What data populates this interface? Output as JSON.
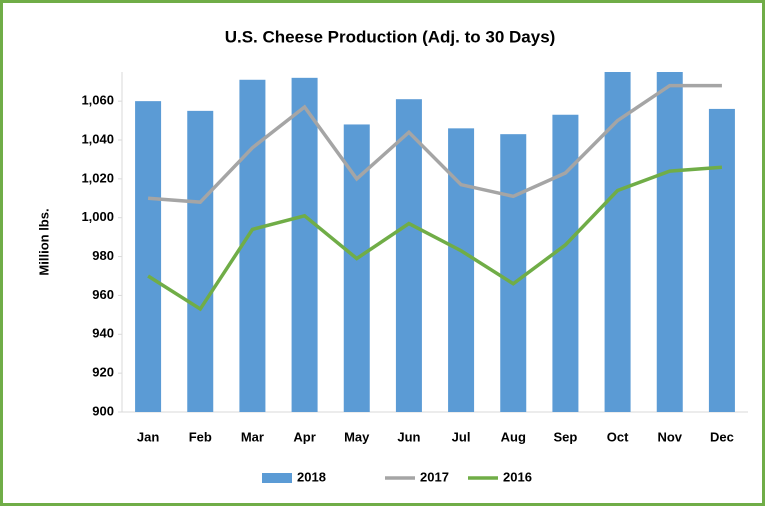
{
  "chart_data": {
    "type": "bar_line",
    "title": "U.S. Cheese Production  (Adj. to 30 Days)",
    "y_label": "Million lbs.",
    "categories": [
      "Jan",
      "Feb",
      "Mar",
      "Apr",
      "May",
      "Jun",
      "Jul",
      "Aug",
      "Sep",
      "Oct",
      "Nov",
      "Dec"
    ],
    "series": [
      {
        "name": "2018",
        "type": "bar",
        "color": "#5b9bd5",
        "values": [
          1060,
          1055,
          1071,
          1072,
          1048,
          1061,
          1046,
          1043,
          1053,
          1075,
          1075,
          1056
        ]
      },
      {
        "name": "2017",
        "type": "line",
        "color": "#a5a5a5",
        "values": [
          1010,
          1008,
          1036,
          1057,
          1020,
          1044,
          1017,
          1011,
          1023,
          1050,
          1068,
          1068
        ]
      },
      {
        "name": "2016",
        "type": "line",
        "color": "#70ad47",
        "values": [
          970,
          953,
          994,
          1001,
          979,
          997,
          983,
          966,
          986,
          1014,
          1024,
          1026
        ]
      }
    ],
    "ylim": [
      900,
      1075
    ],
    "yticks": [
      900,
      920,
      940,
      960,
      980,
      {
        "value": 1000,
        "label": "1,000"
      },
      {
        "value": 1020,
        "label": "1,020"
      },
      {
        "value": 1040,
        "label": "1,040"
      },
      {
        "value": 1060,
        "label": "1,060"
      }
    ],
    "legend": "bottom"
  }
}
